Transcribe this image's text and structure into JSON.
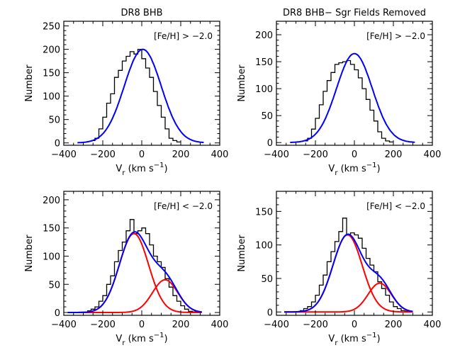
{
  "chart_data": [
    {
      "type": "histogram",
      "title": "DR8  BHB",
      "annotation": "[Fe/H] > -2.0",
      "xlabel": {
        "main": "V",
        "sub": "r",
        "unit": "(km s",
        "sup": "-1",
        "close": ")"
      },
      "ylabel": "Number",
      "xlim": [
        -400,
        400
      ],
      "ylim": [
        -5,
        260
      ],
      "xticks": [
        -400,
        -200,
        0,
        200,
        400
      ],
      "yticks": [
        0,
        50,
        100,
        150,
        200,
        250
      ],
      "hist": {
        "bin_start": -260,
        "bin_width": 20,
        "values": [
          5,
          10,
          30,
          55,
          85,
          105,
          140,
          155,
          175,
          185,
          195,
          190,
          200,
          180,
          160,
          140,
          110,
          80,
          55,
          30,
          10,
          5,
          2
        ]
      },
      "fits": [
        {
          "color": "#0000ff",
          "amplitude": 200,
          "mean": 5,
          "sigma": 95,
          "xmin": -330,
          "xmax": 320
        }
      ]
    },
    {
      "type": "histogram",
      "title": "DR8  BHB− Sgr Fields Removed",
      "annotation": "[Fe/H] > -2.0",
      "xlabel": {
        "main": "V",
        "sub": "r",
        "unit": "(km s",
        "sup": "-1",
        "close": ")"
      },
      "ylabel": "Number",
      "xlim": [
        -400,
        400
      ],
      "ylim": [
        -5,
        225
      ],
      "xticks": [
        -400,
        -200,
        0,
        200,
        400
      ],
      "yticks": [
        0,
        50,
        100,
        150,
        200
      ],
      "hist": {
        "bin_start": -260,
        "bin_width": 20,
        "values": [
          3,
          8,
          25,
          45,
          70,
          95,
          115,
          130,
          145,
          148,
          150,
          152,
          145,
          135,
          120,
          100,
          80,
          60,
          40,
          20,
          8,
          3,
          1
        ]
      },
      "fits": [
        {
          "color": "#0000ff",
          "amplitude": 165,
          "mean": 0,
          "sigma": 92,
          "xmin": -330,
          "xmax": 310
        }
      ]
    },
    {
      "type": "histogram",
      "title": "",
      "annotation": "[Fe/H] < -2.0",
      "xlabel": {
        "main": "V",
        "sub": "r",
        "unit": "(km s",
        "sup": "-1",
        "close": ")"
      },
      "ylabel": "Number",
      "xlim": [
        -400,
        400
      ],
      "ylim": [
        -5,
        215
      ],
      "xticks": [
        -400,
        -200,
        0,
        200,
        400
      ],
      "yticks": [
        0,
        50,
        100,
        150,
        200
      ],
      "hist": {
        "bin_start": -280,
        "bin_width": 20,
        "values": [
          3,
          6,
          10,
          20,
          30,
          50,
          65,
          90,
          110,
          125,
          145,
          165,
          140,
          145,
          150,
          140,
          120,
          100,
          90,
          80,
          60,
          45,
          30,
          20,
          12,
          6,
          2,
          1,
          0
        ]
      },
      "fits": [
        {
          "color": "#0000ff",
          "amplitude": 147,
          "mean": -35,
          "sigma": 110,
          "xmin": -380,
          "xmax": 310,
          "composite": true
        },
        {
          "color": "#ff0000",
          "amplitude": 140,
          "mean": -40,
          "sigma": 75,
          "xmin": -380,
          "xmax": 310
        },
        {
          "color": "#ff0000",
          "amplitude": 58,
          "mean": 120,
          "sigma": 65,
          "xmin": -380,
          "xmax": 310
        }
      ]
    },
    {
      "type": "histogram",
      "title": "",
      "annotation": "[Fe/H] < -2.0",
      "xlabel": {
        "main": "V",
        "sub": "r",
        "unit": "(km s",
        "sup": "-1",
        "close": ")"
      },
      "ylabel": "Number",
      "xlim": [
        -400,
        400
      ],
      "ylim": [
        -5,
        180
      ],
      "xticks": [
        -400,
        -200,
        0,
        200,
        400
      ],
      "yticks": [
        0,
        50,
        100,
        150
      ],
      "hist": {
        "bin_start": -280,
        "bin_width": 20,
        "values": [
          2,
          5,
          8,
          15,
          25,
          40,
          55,
          75,
          90,
          105,
          120,
          140,
          115,
          118,
          115,
          110,
          95,
          80,
          70,
          60,
          45,
          35,
          25,
          15,
          8,
          5,
          2,
          1,
          0
        ]
      },
      "fits": [
        {
          "color": "#0000ff",
          "amplitude": 117,
          "mean": -30,
          "sigma": 112,
          "xmin": -360,
          "xmax": 300,
          "composite": true
        },
        {
          "color": "#ff0000",
          "amplitude": 115,
          "mean": -35,
          "sigma": 75,
          "xmin": -360,
          "xmax": 300
        },
        {
          "color": "#ff0000",
          "amplitude": 43,
          "mean": 130,
          "sigma": 60,
          "xmin": -360,
          "xmax": 300
        }
      ]
    }
  ]
}
